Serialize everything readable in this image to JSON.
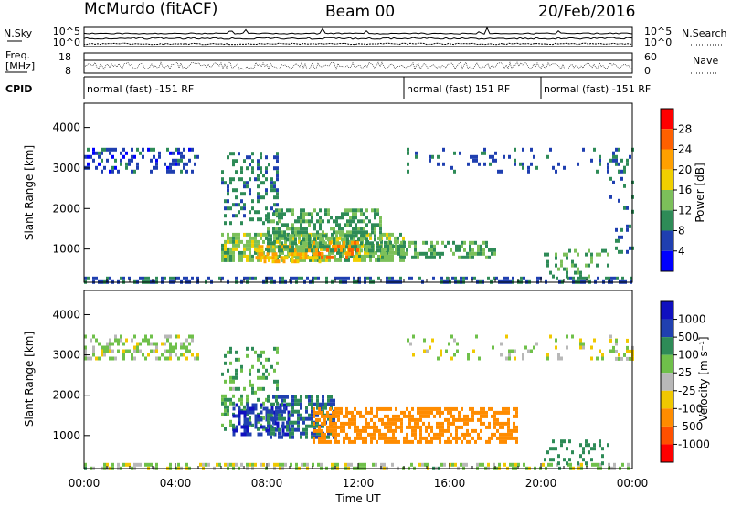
{
  "header": {
    "station": "McMurdo (fitACF)",
    "beam": "Beam 00",
    "date": "20/Feb/2016"
  },
  "summary_panels": {
    "nsky_label": "N.Sky",
    "nsearch_label": "N.Search",
    "count_ticks_left": [
      "10^5",
      "10^0"
    ],
    "count_ticks_right": [
      "10^5",
      "10^0"
    ],
    "freq_label_top": "Freq.",
    "freq_label_bottom": "[MHz]",
    "freq_ticks": [
      "18",
      "8"
    ],
    "nave_label": "Nave",
    "nave_ticks": [
      "60",
      "0"
    ],
    "cpid_label": "CPID",
    "cpid_segments": [
      {
        "start_hour": 0,
        "end_hour": 14,
        "label": "normal (fast) -151 RF"
      },
      {
        "start_hour": 14,
        "end_hour": 20,
        "label": "normal (fast) 151 RF"
      },
      {
        "start_hour": 20,
        "end_hour": 24,
        "label": "normal (fast) -151 RF"
      }
    ]
  },
  "chart_data": [
    {
      "type": "heatmap",
      "parameter": "power",
      "xlabel": "Time UT",
      "ylabel": "Slant Range [km]",
      "xlim": [
        0,
        24
      ],
      "ylim": [
        180,
        4600
      ],
      "yticks": [
        "1000",
        "2000",
        "3000",
        "4000"
      ],
      "colorbar": {
        "label": "Power [dB]",
        "range": [
          0,
          32
        ],
        "ticks": [
          "4",
          "8",
          "12",
          "16",
          "20",
          "24",
          "28"
        ],
        "colors": [
          "#0000ff",
          "#1f3fb0",
          "#2e8b57",
          "#7cc05a",
          "#f0d000",
          "#ffa000",
          "#ff6000",
          "#ff0000"
        ]
      },
      "echo_regions": [
        {
          "t0": 0.0,
          "t1": 5.0,
          "r0": 2900,
          "r1": 3500,
          "level": 6,
          "density": 0.35
        },
        {
          "t0": 0.0,
          "t1": 24.0,
          "r0": 180,
          "r1": 320,
          "level": 7,
          "density": 0.5
        },
        {
          "t0": 6.0,
          "t1": 8.5,
          "r0": 1600,
          "r1": 3400,
          "level": 9,
          "density": 0.3
        },
        {
          "t0": 6.0,
          "t1": 14.0,
          "r0": 700,
          "r1": 1400,
          "level": 14,
          "density": 0.7
        },
        {
          "t0": 7.5,
          "t1": 10.5,
          "r0": 700,
          "r1": 1100,
          "level": 20,
          "density": 0.55
        },
        {
          "t0": 8.0,
          "t1": 13.0,
          "r0": 1000,
          "r1": 2000,
          "level": 11,
          "density": 0.55
        },
        {
          "t0": 10.0,
          "t1": 12.0,
          "r0": 800,
          "r1": 1200,
          "level": 24,
          "density": 0.4
        },
        {
          "t0": 13.0,
          "t1": 18.0,
          "r0": 800,
          "r1": 1200,
          "level": 12,
          "density": 0.5
        },
        {
          "t0": 14.0,
          "t1": 24.0,
          "r0": 2900,
          "r1": 3500,
          "level": 7,
          "density": 0.12
        },
        {
          "t0": 20.0,
          "t1": 23.0,
          "r0": 300,
          "r1": 1000,
          "level": 12,
          "density": 0.25
        },
        {
          "t0": 23.0,
          "t1": 24.0,
          "r0": 800,
          "r1": 3500,
          "level": 8,
          "density": 0.2
        }
      ]
    },
    {
      "type": "heatmap",
      "parameter": "velocity",
      "xlabel": "Time UT",
      "ylabel": "Slant Range [km]",
      "xlim": [
        0,
        24
      ],
      "ylim": [
        180,
        4600
      ],
      "yticks": [
        "1000",
        "2000",
        "3000",
        "4000"
      ],
      "xticks": [
        "00:00",
        "04:00",
        "08:00",
        "12:00",
        "16:00",
        "20:00",
        "00:00"
      ],
      "colorbar": {
        "label": "Velocity [m s⁻¹]",
        "ticks": [
          "1000",
          "500",
          "100",
          "25",
          "-25",
          "-100",
          "-500",
          "-1000"
        ],
        "colors": [
          "#1010c0",
          "#2040b0",
          "#2e8b57",
          "#6fc04a",
          "#b8b8b8",
          "#f0c800",
          "#ff8c00",
          "#ff5000",
          "#ff0000"
        ]
      },
      "echo_regions": [
        {
          "t0": 0.0,
          "t1": 5.0,
          "r0": 2900,
          "r1": 3500,
          "level": 25,
          "density": 0.4
        },
        {
          "t0": 0.0,
          "t1": 24.0,
          "r0": 180,
          "r1": 320,
          "level": 25,
          "density": 0.45
        },
        {
          "t0": 6.0,
          "t1": 8.5,
          "r0": 1200,
          "r1": 3200,
          "level": 100,
          "density": 0.3
        },
        {
          "t0": 6.5,
          "t1": 9.0,
          "r0": 1000,
          "r1": 1800,
          "level": 1000,
          "density": 0.45
        },
        {
          "t0": 8.0,
          "t1": 11.0,
          "r0": 1000,
          "r1": 2000,
          "level": 500,
          "density": 0.6
        },
        {
          "t0": 10.0,
          "t1": 19.0,
          "r0": 800,
          "r1": 1700,
          "level": -300,
          "density": 0.55
        },
        {
          "t0": 14.0,
          "t1": 24.0,
          "r0": 2900,
          "r1": 3500,
          "level": 0,
          "density": 0.12
        },
        {
          "t0": 20.0,
          "t1": 23.0,
          "r0": 300,
          "r1": 900,
          "level": 200,
          "density": 0.25
        },
        {
          "t0": 23.0,
          "t1": 24.0,
          "r0": 2900,
          "r1": 3400,
          "level": 0,
          "density": 0.3
        }
      ]
    }
  ]
}
